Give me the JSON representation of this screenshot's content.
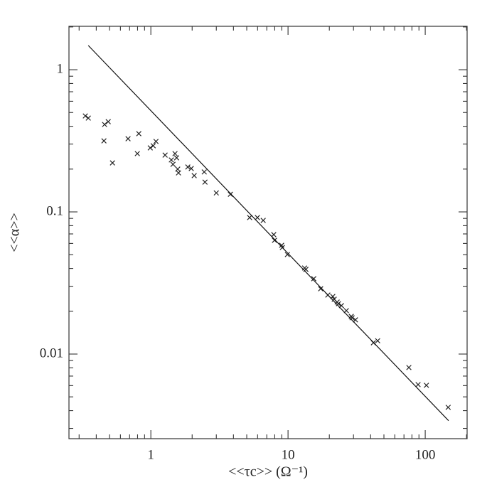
{
  "chart_data": {
    "type": "scatter",
    "x_label": "<<τc>> (Ω⁻¹)",
    "y_label": "<<α>>",
    "xlim": [
      0.253,
      202
    ],
    "ylim": [
      0.00254,
      2.02
    ],
    "xticks": [
      1,
      10,
      100
    ],
    "yticks": [
      0.01,
      0.1,
      1
    ],
    "log_x": true,
    "log_y": true,
    "series": [
      {
        "type": "scatter",
        "marker": "x",
        "color": "#222222",
        "x": [
          0.333,
          0.35,
          0.46,
          0.489,
          0.455,
          0.525,
          0.682,
          0.817,
          0.797,
          0.99,
          1.04,
          1.09,
          1.27,
          1.41,
          1.5,
          1.54,
          1.45,
          1.57,
          1.59,
          1.86,
          1.97,
          2.07,
          2.45,
          2.48,
          3.0,
          3.8,
          5.25,
          5.98,
          6.59,
          7.87,
          7.97,
          8.98,
          9.09,
          9.89,
          13.2,
          13.5,
          15.4,
          17.3,
          19.5,
          21.2,
          21.7,
          22.8,
          23.3,
          24.5,
          26.6,
          28.9,
          29.3,
          31.0,
          41.9,
          45.0,
          76.0,
          88.7,
          102,
          147
        ],
        "values": [
          0.473,
          0.457,
          0.412,
          0.431,
          0.316,
          0.221,
          0.327,
          0.355,
          0.257,
          0.282,
          0.292,
          0.313,
          0.251,
          0.232,
          0.257,
          0.24,
          0.216,
          0.2,
          0.188,
          0.207,
          0.202,
          0.18,
          0.191,
          0.162,
          0.136,
          0.133,
          0.0912,
          0.0912,
          0.0871,
          0.0692,
          0.0631,
          0.0582,
          0.0562,
          0.0501,
          0.0403,
          0.0394,
          0.0339,
          0.0288,
          0.026,
          0.0254,
          0.0243,
          0.0232,
          0.0226,
          0.0219,
          0.0202,
          0.0184,
          0.018,
          0.0174,
          0.012,
          0.0124,
          0.00804,
          0.0061,
          0.00603,
          0.00422
        ]
      },
      {
        "type": "line",
        "color": "#111111",
        "x": [
          0.35,
          148
        ],
        "values": [
          1.48,
          0.0034
        ]
      }
    ]
  }
}
